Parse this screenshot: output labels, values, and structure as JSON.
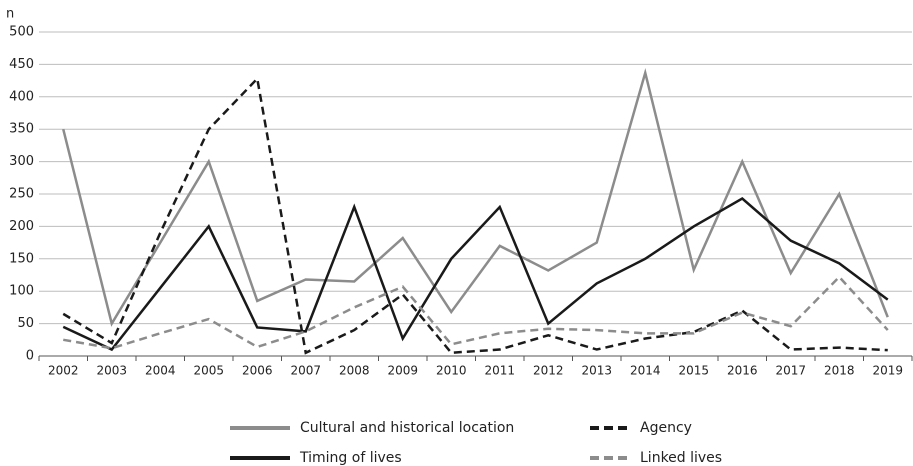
{
  "chart_data": {
    "type": "line",
    "y_label": "n",
    "categories": [
      "2002",
      "2003",
      "2004",
      "2005",
      "2006",
      "2007",
      "2008",
      "2009",
      "2010",
      "2011",
      "2012",
      "2013",
      "2014",
      "2015",
      "2016",
      "2017",
      "2018",
      "2019"
    ],
    "ylim": [
      0,
      500
    ],
    "yticks": [
      0,
      50,
      100,
      150,
      200,
      250,
      300,
      350,
      400,
      450,
      500
    ],
    "grid": true,
    "legend": "bottom",
    "series": [
      {
        "name": "Cultural and historical location",
        "color": "#8c8c8c",
        "dash": "solid",
        "values": [
          350,
          50,
          175,
          300,
          85,
          118,
          115,
          182,
          68,
          170,
          132,
          175,
          437,
          133,
          300,
          128,
          250,
          60
        ]
      },
      {
        "name": "Agency",
        "color": "#1a1a1a",
        "dash": "dashed",
        "values": [
          65,
          20,
          190,
          350,
          428,
          5,
          40,
          95,
          5,
          10,
          32,
          10,
          27,
          37,
          70,
          10,
          13,
          9
        ]
      },
      {
        "name": "Timing of lives",
        "color": "#1a1a1a",
        "dash": "solid",
        "values": [
          45,
          10,
          105,
          200,
          44,
          38,
          230,
          27,
          150,
          230,
          50,
          112,
          150,
          200,
          243,
          178,
          143,
          87
        ]
      },
      {
        "name": "Linked lives",
        "color": "#8c8c8c",
        "dash": "dashed",
        "values": [
          25,
          12,
          35,
          57,
          14,
          38,
          75,
          107,
          18,
          35,
          42,
          40,
          35,
          35,
          67,
          46,
          122,
          40
        ]
      }
    ]
  }
}
